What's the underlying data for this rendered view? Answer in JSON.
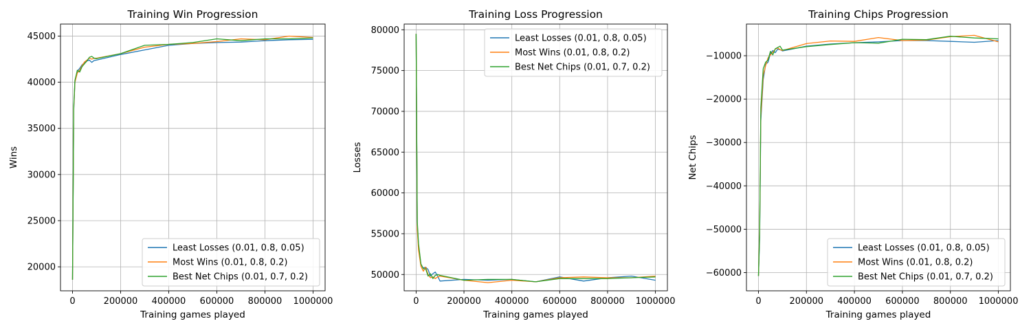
{
  "x_values": [
    0,
    5000,
    10000,
    20000,
    30000,
    40000,
    50000,
    60000,
    70000,
    80000,
    90000,
    100000,
    200000,
    300000,
    400000,
    500000,
    600000,
    700000,
    800000,
    900000,
    1000000
  ],
  "legend_names": [
    "Least Losses (0.01, 0.8, 0.05)",
    "Most Wins (0.01, 0.8, 0.2)",
    "Best Net Chips (0.01, 0.7, 0.2)"
  ],
  "colors": [
    "#1f77b4",
    "#ff7f0e",
    "#2ca02c"
  ],
  "chart_data": [
    {
      "type": "line",
      "title": "Training Win Progression",
      "xlabel": "Training games played",
      "ylabel": "Wins",
      "xlim": [
        -50000,
        1050000
      ],
      "ylim": [
        17400,
        46300
      ],
      "xticks": [
        0,
        200000,
        400000,
        600000,
        800000,
        1000000
      ],
      "yticks": [
        20000,
        25000,
        30000,
        35000,
        40000,
        45000
      ],
      "grid": true,
      "legend_position": "lower right",
      "series": [
        {
          "name": "Least Losses (0.01, 0.8, 0.05)",
          "values": [
            18600,
            37000,
            40000,
            41200,
            41500,
            41900,
            42100,
            42300,
            42400,
            42150,
            42350,
            42400,
            43000,
            43500,
            44000,
            44200,
            44300,
            44350,
            44500,
            44600,
            44650
          ]
        },
        {
          "name": "Most Wins (0.01, 0.8, 0.2)",
          "values": [
            18600,
            37200,
            40000,
            41000,
            41300,
            41800,
            42200,
            42400,
            42600,
            42500,
            42600,
            42600,
            43100,
            43800,
            44100,
            44200,
            44400,
            44700,
            44600,
            45000,
            44850
          ]
        },
        {
          "name": "Best Net Chips (0.01, 0.7, 0.2)",
          "values": [
            18600,
            37500,
            40200,
            41300,
            41100,
            41700,
            42000,
            42300,
            42700,
            42800,
            42600,
            42550,
            43100,
            44000,
            44100,
            44300,
            44700,
            44500,
            44700,
            44700,
            44800
          ]
        }
      ]
    },
    {
      "type": "line",
      "title": "Training Loss Progression",
      "xlabel": "Training games played",
      "ylabel": "Losses",
      "xlim": [
        -50000,
        1050000
      ],
      "ylim": [
        48000,
        80700
      ],
      "xticks": [
        0,
        200000,
        400000,
        600000,
        800000,
        1000000
      ],
      "yticks": [
        50000,
        55000,
        60000,
        65000,
        70000,
        75000,
        80000
      ],
      "grid": true,
      "legend_position": "upper right",
      "series": [
        {
          "name": "Least Losses (0.01, 0.8, 0.05)",
          "values": [
            79500,
            56000,
            53500,
            51200,
            50800,
            50900,
            50600,
            49800,
            50100,
            50300,
            49800,
            49200,
            49400,
            49300,
            49400,
            49100,
            49700,
            49200,
            49600,
            49800,
            49300
          ]
        },
        {
          "name": "Most Wins (0.01, 0.8, 0.2)",
          "values": [
            79500,
            55500,
            53000,
            51000,
            50400,
            50900,
            50000,
            49600,
            49700,
            49500,
            49700,
            49800,
            49300,
            49000,
            49300,
            49100,
            49600,
            49700,
            49600,
            49600,
            49800
          ]
        },
        {
          "name": "Best Net Chips (0.01, 0.7, 0.2)",
          "values": [
            79500,
            56500,
            53800,
            51300,
            50700,
            50700,
            49800,
            50100,
            49500,
            49900,
            50000,
            49900,
            49300,
            49400,
            49400,
            49100,
            49500,
            49500,
            49500,
            49600,
            49700
          ]
        }
      ]
    },
    {
      "type": "line",
      "title": "Training Chips Progression",
      "xlabel": "Training games played",
      "ylabel": "Net Chips",
      "xlim": [
        -50000,
        1050000
      ],
      "ylim": [
        -64200,
        -2700
      ],
      "xticks": [
        0,
        200000,
        400000,
        600000,
        800000,
        1000000
      ],
      "yticks": [
        -60000,
        -50000,
        -40000,
        -30000,
        -20000,
        -10000
      ],
      "grid": true,
      "legend_position": "lower right",
      "series": [
        {
          "name": "Least Losses (0.01, 0.8, 0.05)",
          "values": [
            -60800,
            -52000,
            -25000,
            -15500,
            -12000,
            -11500,
            -9500,
            -8800,
            -9300,
            -8500,
            -8600,
            -8900,
            -7800,
            -7300,
            -7000,
            -6800,
            -6500,
            -6500,
            -6700,
            -6900,
            -6500
          ]
        },
        {
          "name": "Most Wins (0.01, 0.8, 0.2)",
          "values": [
            -60800,
            -50000,
            -24000,
            -14500,
            -12300,
            -10500,
            -9800,
            -9200,
            -8500,
            -8200,
            -8600,
            -8800,
            -7200,
            -6600,
            -6700,
            -5800,
            -6500,
            -6400,
            -5600,
            -5300,
            -6800
          ]
        },
        {
          "name": "Best Net Chips (0.01, 0.7, 0.2)",
          "values": [
            -60800,
            -51000,
            -22000,
            -13000,
            -11500,
            -11000,
            -9000,
            -9800,
            -8400,
            -8100,
            -7800,
            -8700,
            -7900,
            -7400,
            -7000,
            -7100,
            -6200,
            -6300,
            -5500,
            -5900,
            -6100
          ]
        }
      ]
    }
  ]
}
